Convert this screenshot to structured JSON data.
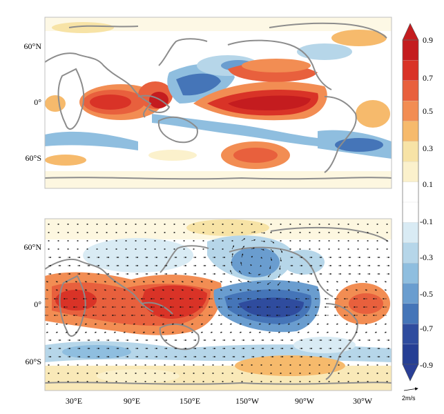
{
  "figure": {
    "lat_ticks": [
      "60°N",
      "0°",
      "60°S"
    ],
    "lon_ticks": [
      "30°E",
      "90°E",
      "150°E",
      "150°W",
      "90°W",
      "30°W"
    ],
    "colorbar": {
      "labels": [
        "0.9",
        "0.7",
        "0.5",
        "0.3",
        "0.1",
        "-0.1",
        "-0.3",
        "-0.5",
        "-0.7",
        "-0.9"
      ],
      "colors": [
        "#c41c1f",
        "#d93327",
        "#e8603d",
        "#f28d53",
        "#f6ba6c",
        "#f7e3a6",
        "#fbf1cc",
        "#ffffff",
        "#ffffff",
        "#d9ebf4",
        "#b6d6e9",
        "#8fbedf",
        "#6a9dcf",
        "#4575b8",
        "#2f4c9e",
        "#263f94"
      ],
      "top_arrow_color": "#c41c1f",
      "bottom_arrow_color": "#2a3f96"
    },
    "reference_vector": "2m/s",
    "panels": [
      {
        "name": "top",
        "field": "regression pattern (shading)"
      },
      {
        "name": "bottom",
        "field": "regression pattern (shading) with wind vectors"
      }
    ]
  }
}
